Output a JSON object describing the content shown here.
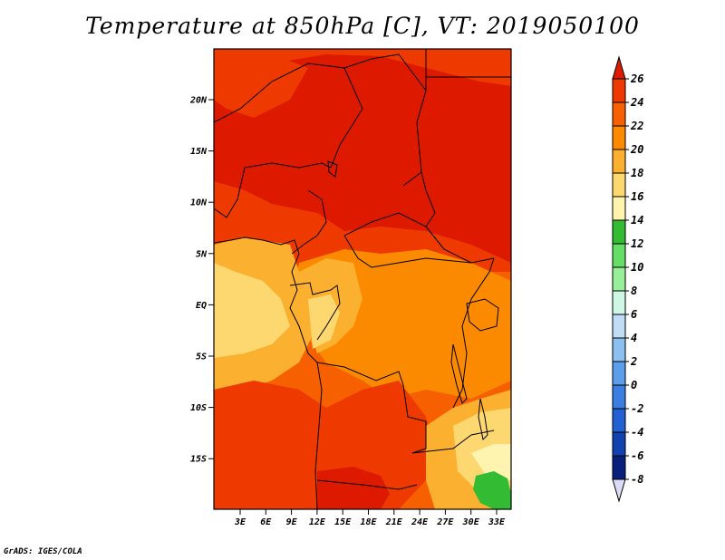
{
  "title": "Temperature at 850hPa [C], VT: 2019050100",
  "credit": "GrADS: IGES/COLA",
  "lat_ticks": [
    "20N",
    "15N",
    "10N",
    "5N",
    "EQ",
    "5S",
    "10S",
    "15S"
  ],
  "lon_ticks": [
    "3E",
    "6E",
    "9E",
    "12E",
    "15E",
    "18E",
    "21E",
    "24E",
    "27E",
    "30E",
    "33E"
  ],
  "colorbar": {
    "labels": [
      "26",
      "24",
      "22",
      "20",
      "18",
      "16",
      "14",
      "12",
      "10",
      "8",
      "6",
      "4",
      "2",
      "0",
      "-2",
      "-4",
      "-6",
      "-8"
    ],
    "colors": [
      "#dd1a00",
      "#ee3a00",
      "#f76000",
      "#fb8a00",
      "#fbb030",
      "#fdd870",
      "#fff3b0",
      "#33bb33",
      "#66dd66",
      "#99ee99",
      "#d0f6e6",
      "#c0dcf6",
      "#8cc0f0",
      "#5c9eea",
      "#3a7ee0",
      "#2260d4",
      "#1242b0",
      "#08207a",
      "#000060"
    ],
    "top_color": "#dd1a00",
    "bottom_color": "#dcdcf6"
  },
  "map_colors": {
    "t24": "#dd1a00",
    "t22": "#ee3a00",
    "t20": "#f76000",
    "t18": "#fb8a00",
    "t16": "#fbb030",
    "t14": "#fdd870",
    "t12": "#fff3b0",
    "green": "#33bb33"
  }
}
